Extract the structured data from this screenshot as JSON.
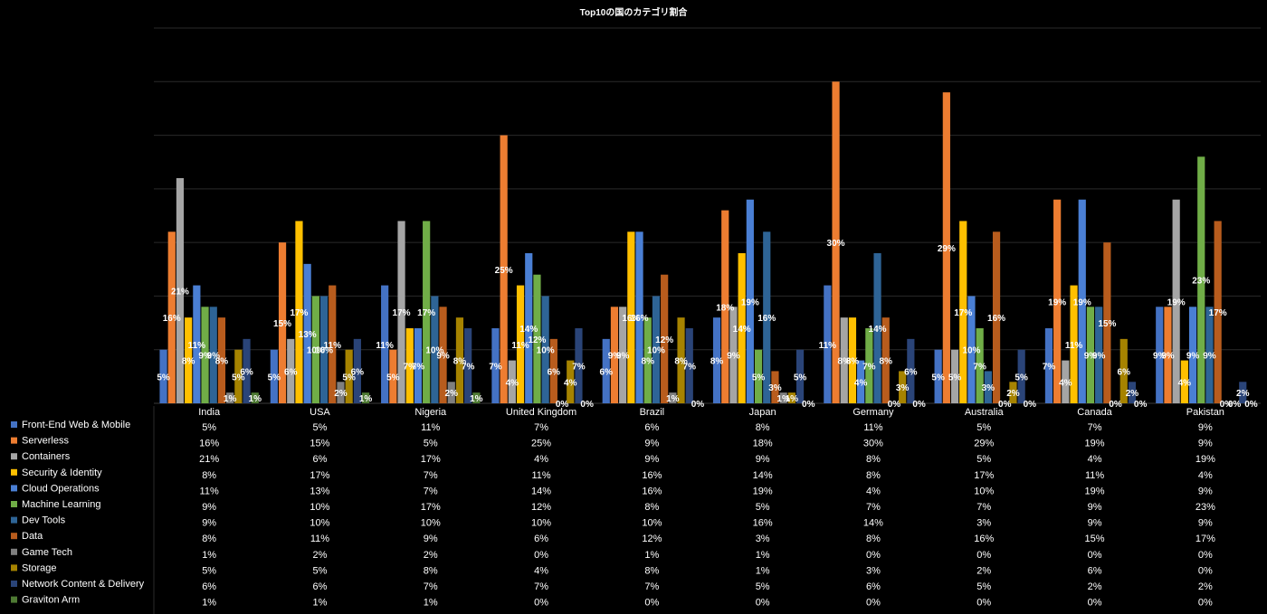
{
  "chart_data": {
    "type": "bar",
    "title": "Top10の国のカテゴリ割合",
    "ylim": [
      0,
      35
    ],
    "grid": true,
    "legend": "data table below chart",
    "categories": [
      "India",
      "USA",
      "Nigeria",
      "United Kingdom",
      "Brazil",
      "Japan",
      "Germany",
      "Australia",
      "Canada",
      "Pakistan"
    ],
    "series": [
      {
        "name": "Front-End Web & Mobile",
        "color": "#4472c4",
        "values": [
          5,
          5,
          11,
          7,
          6,
          8,
          11,
          5,
          7,
          9
        ]
      },
      {
        "name": "Serverless",
        "color": "#ed7d31",
        "values": [
          16,
          15,
          5,
          25,
          9,
          18,
          30,
          29,
          19,
          9
        ]
      },
      {
        "name": "Containers",
        "color": "#a5a5a5",
        "values": [
          21,
          6,
          17,
          4,
          9,
          9,
          8,
          5,
          4,
          19
        ]
      },
      {
        "name": "Security & Identity",
        "color": "#ffc000",
        "values": [
          8,
          17,
          7,
          11,
          16,
          14,
          8,
          17,
          11,
          4
        ]
      },
      {
        "name": "Cloud Operations",
        "color": "#4a7fd4",
        "values": [
          11,
          13,
          7,
          14,
          16,
          19,
          4,
          10,
          19,
          9
        ]
      },
      {
        "name": "Machine Learning",
        "color": "#70ad47",
        "values": [
          9,
          10,
          17,
          12,
          8,
          5,
          7,
          7,
          9,
          23
        ]
      },
      {
        "name": "Dev Tools",
        "color": "#2e6496",
        "values": [
          9,
          10,
          10,
          10,
          10,
          16,
          14,
          3,
          9,
          9
        ]
      },
      {
        "name": "Data",
        "color": "#b85c1d",
        "values": [
          8,
          11,
          9,
          6,
          12,
          3,
          8,
          16,
          15,
          17
        ]
      },
      {
        "name": "Game Tech",
        "color": "#7f7f7f",
        "values": [
          1,
          2,
          2,
          0,
          1,
          1,
          0,
          0,
          0,
          0
        ]
      },
      {
        "name": "Storage",
        "color": "#a68300",
        "values": [
          5,
          5,
          8,
          4,
          8,
          1,
          3,
          2,
          6,
          0
        ]
      },
      {
        "name": "Network Content & Delivery",
        "color": "#2a4478",
        "values": [
          6,
          6,
          7,
          7,
          7,
          5,
          6,
          5,
          2,
          2
        ]
      },
      {
        "name": "Graviton Arm",
        "color": "#4e7a33",
        "values": [
          1,
          1,
          1,
          0,
          0,
          0,
          0,
          0,
          0,
          0
        ]
      }
    ]
  }
}
